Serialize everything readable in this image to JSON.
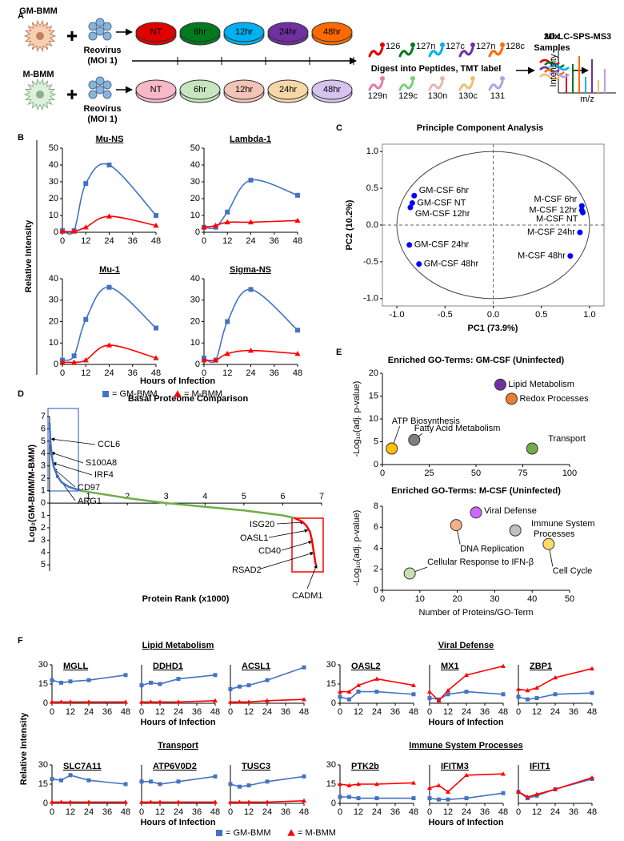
{
  "panel_labels": [
    "A",
    "B",
    "C",
    "D",
    "E",
    "F"
  ],
  "schematic": {
    "cells": [
      "GM-BMM",
      "M-BMM"
    ],
    "virus": [
      "Reovirus",
      "(MOI 1)"
    ],
    "timepoints": [
      "NT",
      "6hr",
      "12hr",
      "24hr",
      "48hr"
    ],
    "dish_colors_top": [
      "#e00000",
      "#007a20",
      "#00b0f0",
      "#7030a0",
      "#ff6a00"
    ],
    "dish_colors_bottom": [
      "#f7b8c8",
      "#c6e6c0",
      "#f2c4b8",
      "#f5d7a8",
      "#d6c4ee"
    ],
    "tmt_top": [
      "126",
      "127n",
      "127c",
      "127n",
      "128c"
    ],
    "tmt_colors_top": [
      "#e00000",
      "#007a20",
      "#00b0f0",
      "#7030a0",
      "#ff6a00"
    ],
    "tmt_bottom": [
      "129n",
      "129c",
      "130n",
      "130c",
      "131"
    ],
    "tmt_colors_bottom": [
      "#e87aa8",
      "#7ccf7c",
      "#e8b8a8",
      "#f0c070",
      "#b8a0e8"
    ],
    "digest": "Digest into Peptides, TMT label",
    "mix": [
      "Mix",
      "Samples"
    ],
    "ms": "2D-LC-SPS-MS3",
    "ms_ylabel": "Intensity",
    "ms_xlabel": "m/z"
  },
  "panel_b": {
    "ylabel": "Relative Intensity",
    "xlabel": "Hours of Infection",
    "legend": [
      {
        "label": "= GM-BMM",
        "color": "#4472c4",
        "marker": "square"
      },
      {
        "label": "= M-BMM",
        "color": "#ff0000",
        "marker": "triangle"
      }
    ]
  },
  "panel_f": {
    "groups": [
      "Lipid Metabolism",
      "Viral Defense",
      "Transport",
      "Immune System Processes"
    ],
    "ylabel": "Relative Intensity",
    "xlabel": "Hours of Infection",
    "legend": [
      {
        "label": "= GM-BMM",
        "color": "#4472c4",
        "marker": "square"
      },
      {
        "label": "= M-BMM",
        "color": "#ff0000",
        "marker": "triangle"
      }
    ]
  },
  "chart_data": [
    {
      "type": "line",
      "title": "Mu-NS",
      "smooth": true,
      "x": [
        0,
        6,
        12,
        24,
        48
      ],
      "xlim": [
        0,
        48
      ],
      "xticks": [
        0,
        12,
        24,
        36,
        48
      ],
      "ylim": [
        0,
        50
      ],
      "yticks": [
        0,
        10,
        20,
        30,
        40,
        50
      ],
      "series": [
        {
          "color": "#4472c4",
          "marker": "square",
          "values": [
            1,
            1,
            29,
            40,
            10
          ]
        },
        {
          "color": "#ff0000",
          "marker": "triangle",
          "values": [
            0.5,
            0.5,
            3,
            9.5,
            4
          ]
        }
      ]
    },
    {
      "type": "line",
      "title": "Lambda-1",
      "smooth": true,
      "x": [
        0,
        6,
        12,
        24,
        48
      ],
      "xlim": [
        0,
        48
      ],
      "xticks": [
        0,
        12,
        24,
        36,
        48
      ],
      "ylim": [
        0,
        50
      ],
      "yticks": [
        0,
        10,
        20,
        30,
        40,
        50
      ],
      "series": [
        {
          "color": "#4472c4",
          "marker": "square",
          "values": [
            3,
            3,
            12,
            31,
            22
          ]
        },
        {
          "color": "#ff0000",
          "marker": "triangle",
          "values": [
            3,
            4,
            6,
            6,
            7
          ]
        }
      ]
    },
    {
      "type": "line",
      "title": "Mu-1",
      "smooth": true,
      "x": [
        0,
        6,
        12,
        24,
        48
      ],
      "xlim": [
        0,
        48
      ],
      "xticks": [
        0,
        12,
        24,
        36,
        48
      ],
      "ylim": [
        0,
        40
      ],
      "yticks": [
        0,
        10,
        20,
        30,
        40
      ],
      "series": [
        {
          "color": "#4472c4",
          "marker": "square",
          "values": [
            2,
            4,
            21,
            36,
            17
          ]
        },
        {
          "color": "#ff0000",
          "marker": "triangle",
          "values": [
            1,
            1,
            2,
            9,
            3
          ]
        }
      ]
    },
    {
      "type": "line",
      "title": "Sigma-NS",
      "smooth": true,
      "x": [
        0,
        6,
        12,
        24,
        48
      ],
      "xlim": [
        0,
        48
      ],
      "xticks": [
        0,
        12,
        24,
        36,
        48
      ],
      "ylim": [
        0,
        40
      ],
      "yticks": [
        0,
        10,
        20,
        30,
        40
      ],
      "series": [
        {
          "color": "#4472c4",
          "marker": "square",
          "values": [
            3,
            2,
            20,
            35,
            16
          ]
        },
        {
          "color": "#ff0000",
          "marker": "triangle",
          "values": [
            2,
            2,
            5,
            6.5,
            5
          ]
        }
      ]
    },
    {
      "type": "scatter",
      "title": "Principle Component Analysis",
      "xlabel": "PC1 (73.9%)",
      "ylabel": "PC2 (10.2%)",
      "color": "#0000ff",
      "x": [
        -0.82,
        -0.84,
        -0.86,
        -0.87,
        -0.77,
        0.92,
        0.92,
        0.93,
        0.9,
        0.8
      ],
      "values": [
        0.4,
        0.3,
        0.24,
        -0.27,
        -0.53,
        0.26,
        0.2,
        0.17,
        -0.1,
        -0.42
      ],
      "point_labels": [
        "GM-CSF 6hr",
        "GM-CSF NT",
        "GM-CSF 12hr",
        "GM-CSF 24hr",
        "GM-CSF 48hr",
        "M-CSF 6hr",
        "M-CSF 12hr",
        "M-CSF NT",
        "M-CSF 24hr",
        "M-CSF 48hr"
      ],
      "xlim": [
        -1.15,
        1.15
      ],
      "xticks": [
        {
          "value": -1,
          "label": "-1.0"
        },
        -0.5,
        {
          "value": 0,
          "label": "0.0"
        },
        0.5,
        {
          "value": 1,
          "label": "1.0"
        }
      ],
      "ylim": [
        -1.1,
        1.1
      ],
      "yticks": [
        {
          "value": -1,
          "label": "-1.0"
        },
        -0.5,
        {
          "value": 0,
          "label": "0.0"
        },
        0.5,
        {
          "value": 1,
          "label": "1.0"
        }
      ]
    },
    {
      "type": "line",
      "title": "Basal Proteome Comparison",
      "xlabel": "Protein Rank (x1000)",
      "ylabel": "Log₂(GM-BMM/M-BMM)",
      "xlim": [
        0,
        7
      ],
      "xticks": [
        1,
        2,
        3,
        4,
        5,
        6,
        7
      ],
      "ylim": [
        -5.5,
        7
      ],
      "yticks": [
        7,
        6,
        5,
        4,
        3,
        2,
        1,
        0,
        {
          "value": -1,
          "label": "1"
        },
        {
          "value": -2,
          "label": "2"
        },
        {
          "value": -3,
          "label": "3"
        },
        {
          "value": -4,
          "label": "4"
        },
        {
          "value": -5,
          "label": "5"
        }
      ],
      "series": [
        {
          "color": "#4472c4",
          "x": [
            0,
            0.02,
            0.05,
            0.1,
            0.2,
            0.3,
            0.5,
            0.8
          ],
          "values": [
            6.5,
            5,
            4,
            3,
            2.2,
            1.7,
            1.3,
            1.0
          ]
        },
        {
          "color": "#70ad47",
          "x": [
            0.8,
            1,
            1.5,
            2,
            2.5,
            3,
            3.5,
            4,
            4.5,
            5,
            5.5,
            6,
            6.3
          ],
          "values": [
            1.0,
            0.9,
            0.65,
            0.4,
            0.2,
            0,
            -0.15,
            -0.3,
            -0.45,
            -0.6,
            -0.8,
            -1.0,
            -1.2
          ]
        },
        {
          "color": "#ff0000",
          "x": [
            6.3,
            6.5,
            6.6,
            6.7,
            6.75,
            6.8,
            6.85
          ],
          "values": [
            -1.2,
            -1.5,
            -1.8,
            -2.3,
            -3,
            -4,
            -5
          ]
        }
      ],
      "annotations": [
        "CCL6",
        "S100A8",
        "IRF4",
        "CD97",
        "ARG1",
        "ISG20",
        "OASL1",
        "CD40",
        "RSAD2",
        "CADM1"
      ]
    },
    {
      "type": "scatter",
      "title": "Enriched GO-Terms: GM-CSF (Uninfected)",
      "ylabel": "-Log₁₀(adj. p-value)",
      "x": [
        63,
        69,
        5,
        17,
        80
      ],
      "values": [
        17.5,
        14.4,
        3.5,
        5.4,
        3.5
      ],
      "point_labels": [
        "Lipid Metabolism",
        "Redox Processes",
        "ATP Biosynthesis",
        "Fatty Acid Metabolism",
        "Transport"
      ],
      "colors": [
        "#7030a0",
        "#ed7d31",
        "#ffc000",
        "#7f7f7f",
        "#70ad47"
      ],
      "xlim": [
        0,
        100
      ],
      "xticks": [
        0,
        25,
        50,
        75,
        100
      ],
      "ylim": [
        0,
        20
      ],
      "yticks": [
        0,
        5,
        10,
        15,
        20
      ]
    },
    {
      "type": "scatter",
      "title": "Enriched GO-Terms: M-CSF (Uninfected)",
      "xlabel": "Number of Proteins/GO-Term",
      "ylabel": "-Log₁₀(adj. p-value)",
      "x": [
        25,
        19.7,
        35.5,
        44.4,
        7.3
      ],
      "values": [
        7.4,
        6.2,
        5.7,
        4.4,
        1.6
      ],
      "point_labels": [
        "Viral Defense",
        "DNA Replication",
        "Immune System Processes",
        "Cell Cycle",
        "Cellular Response to IFN-β"
      ],
      "colors": [
        "#cc66ff",
        "#f4b183",
        "#bfbfbf",
        "#ffd966",
        "#c5e0b4"
      ],
      "xlim": [
        0,
        50
      ],
      "xticks": [
        0,
        10,
        20,
        30,
        40,
        50
      ],
      "ylim": [
        0,
        8
      ],
      "yticks": [
        0,
        2,
        4,
        6,
        8
      ]
    },
    {
      "type": "line",
      "title": "MGLL",
      "x": [
        0,
        6,
        12,
        24,
        48
      ],
      "xlim": [
        0,
        48
      ],
      "xticks": [
        0,
        12,
        24,
        36,
        48
      ],
      "ylim": [
        0,
        30
      ],
      "yticks": [
        0,
        15,
        30
      ],
      "series": [
        {
          "color": "#4472c4",
          "marker": "square",
          "values": [
            18,
            16,
            17,
            18,
            22
          ]
        },
        {
          "color": "#ff0000",
          "marker": "triangle",
          "values": [
            1,
            1,
            1,
            1,
            1
          ]
        }
      ]
    },
    {
      "type": "line",
      "title": "DDHD1",
      "x": [
        0,
        6,
        12,
        24,
        48
      ],
      "xlim": [
        0,
        48
      ],
      "xticks": [
        0,
        12,
        24,
        36,
        48
      ],
      "ylim": [
        0,
        30
      ],
      "series": [
        {
          "color": "#4472c4",
          "marker": "square",
          "values": [
            14,
            16,
            15,
            19,
            22
          ]
        },
        {
          "color": "#ff0000",
          "marker": "triangle",
          "values": [
            1,
            1,
            1,
            1,
            2
          ]
        }
      ]
    },
    {
      "type": "line",
      "title": "ACSL1",
      "x": [
        0,
        6,
        12,
        24,
        48
      ],
      "xlim": [
        0,
        48
      ],
      "xticks": [
        0,
        12,
        24,
        36,
        48
      ],
      "ylim": [
        0,
        30
      ],
      "series": [
        {
          "color": "#4472c4",
          "marker": "square",
          "values": [
            11,
            13,
            14,
            18,
            28
          ]
        },
        {
          "color": "#ff0000",
          "marker": "triangle",
          "values": [
            1,
            1,
            1,
            2,
            3
          ]
        }
      ]
    },
    {
      "type": "line",
      "title": "OASL2",
      "x": [
        0,
        6,
        12,
        24,
        48
      ],
      "xlim": [
        0,
        48
      ],
      "xticks": [
        0,
        12,
        24,
        36,
        48
      ],
      "ylim": [
        0,
        30
      ],
      "yticks": [
        0,
        15,
        30
      ],
      "series": [
        {
          "color": "#4472c4",
          "marker": "square",
          "values": [
            5,
            3,
            9,
            9,
            7
          ]
        },
        {
          "color": "#ff0000",
          "marker": "triangle",
          "values": [
            9,
            9,
            14,
            19,
            14
          ]
        }
      ]
    },
    {
      "type": "line",
      "title": "MX1",
      "x": [
        0,
        6,
        12,
        24,
        48
      ],
      "xlim": [
        0,
        48
      ],
      "xticks": [
        0,
        12,
        24,
        36,
        48
      ],
      "ylim": [
        0,
        30
      ],
      "series": [
        {
          "color": "#4472c4",
          "marker": "square",
          "values": [
            4,
            3,
            7,
            9,
            7
          ]
        },
        {
          "color": "#ff0000",
          "marker": "triangle",
          "values": [
            9,
            2,
            10,
            22,
            29
          ]
        }
      ]
    },
    {
      "type": "line",
      "title": "ZBP1",
      "x": [
        0,
        6,
        12,
        24,
        48
      ],
      "xlim": [
        0,
        48
      ],
      "xticks": [
        0,
        12,
        24,
        36,
        48
      ],
      "ylim": [
        0,
        30
      ],
      "series": [
        {
          "color": "#4472c4",
          "marker": "square",
          "values": [
            5,
            3,
            4,
            7,
            8
          ]
        },
        {
          "color": "#ff0000",
          "marker": "triangle",
          "values": [
            11,
            10,
            12,
            20,
            27
          ]
        }
      ]
    },
    {
      "type": "line",
      "title": "SLC7A11",
      "x": [
        0,
        6,
        12,
        24,
        48
      ],
      "xlim": [
        0,
        48
      ],
      "xticks": [
        0,
        12,
        24,
        36,
        48
      ],
      "ylim": [
        0,
        30
      ],
      "yticks": [
        0,
        15,
        30
      ],
      "series": [
        {
          "color": "#4472c4",
          "marker": "square",
          "values": [
            19,
            18,
            22,
            18,
            15
          ]
        },
        {
          "color": "#ff0000",
          "marker": "triangle",
          "values": [
            1,
            1,
            1,
            1,
            1
          ]
        }
      ]
    },
    {
      "type": "line",
      "title": "ATP6V0D2",
      "x": [
        0,
        6,
        12,
        24,
        48
      ],
      "xlim": [
        0,
        48
      ],
      "xticks": [
        0,
        12,
        24,
        36,
        48
      ],
      "ylim": [
        0,
        30
      ],
      "series": [
        {
          "color": "#4472c4",
          "marker": "square",
          "values": [
            17,
            17,
            15,
            17,
            21
          ]
        },
        {
          "color": "#ff0000",
          "marker": "triangle",
          "values": [
            1,
            1,
            1,
            1,
            1
          ]
        }
      ]
    },
    {
      "type": "line",
      "title": "TUSC3",
      "x": [
        0,
        6,
        12,
        24,
        48
      ],
      "xlim": [
        0,
        48
      ],
      "xticks": [
        0,
        12,
        24,
        36,
        48
      ],
      "ylim": [
        0,
        30
      ],
      "series": [
        {
          "color": "#4472c4",
          "marker": "square",
          "values": [
            15,
            13,
            14,
            17,
            21
          ]
        },
        {
          "color": "#ff0000",
          "marker": "triangle",
          "values": [
            1,
            1,
            1,
            1,
            2
          ]
        }
      ]
    },
    {
      "type": "line",
      "title": "PTK2b",
      "x": [
        0,
        6,
        12,
        24,
        48
      ],
      "xlim": [
        0,
        48
      ],
      "xticks": [
        0,
        12,
        24,
        36,
        48
      ],
      "ylim": [
        0,
        30
      ],
      "yticks": [
        0,
        15,
        30
      ],
      "series": [
        {
          "color": "#4472c4",
          "marker": "square",
          "values": [
            5,
            5,
            4,
            4,
            4
          ]
        },
        {
          "color": "#ff0000",
          "marker": "triangle",
          "values": [
            15,
            14,
            15,
            15,
            16
          ]
        }
      ]
    },
    {
      "type": "line",
      "title": "IFITM3",
      "x": [
        0,
        6,
        12,
        24,
        48
      ],
      "xlim": [
        0,
        48
      ],
      "xticks": [
        0,
        12,
        24,
        36,
        48
      ],
      "ylim": [
        0,
        30
      ],
      "series": [
        {
          "color": "#4472c4",
          "marker": "square",
          "values": [
            4,
            3,
            3,
            4,
            8
          ]
        },
        {
          "color": "#ff0000",
          "marker": "triangle",
          "values": [
            12,
            14,
            9,
            22,
            23
          ]
        }
      ]
    },
    {
      "type": "line",
      "title": "IFIT1",
      "x": [
        0,
        6,
        12,
        24,
        48
      ],
      "xlim": [
        0,
        48
      ],
      "xticks": [
        0,
        12,
        24,
        36,
        48
      ],
      "ylim": [
        0,
        30
      ],
      "series": [
        {
          "color": "#4472c4",
          "marker": "square",
          "values": [
            9,
            4,
            6,
            11,
            19
          ]
        },
        {
          "color": "#ff0000",
          "marker": "triangle",
          "values": [
            9,
            5,
            7,
            11,
            20
          ]
        }
      ]
    }
  ]
}
